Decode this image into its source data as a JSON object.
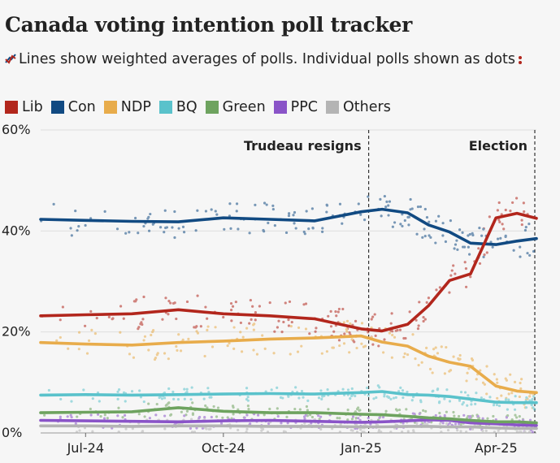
{
  "header": {
    "title": "Canada voting intention poll tracker",
    "subtitle_text": "Lines show weighted averages of polls. Individual polls shown as dots",
    "lines_icon": "lines-icon",
    "dots_icon": "dots-icon"
  },
  "chart_data": {
    "type": "line",
    "title": "Canada voting intention poll tracker",
    "xlabel": "",
    "ylabel": "",
    "ylim": [
      0,
      60
    ],
    "y_ticks": [
      "0%",
      "20%",
      "40%",
      "60%"
    ],
    "x_ticks": [
      "Jul-24",
      "Oct-24",
      "Jan-25",
      "Apr-25"
    ],
    "x_range": [
      "2024-06-01",
      "2025-04-28"
    ],
    "grid": true,
    "legend_position": "top-left",
    "annotations": [
      {
        "label": "Trudeau resigns",
        "date": "2025-01-06"
      },
      {
        "label": "Election",
        "date": "2025-04-28"
      }
    ],
    "x": [
      "2024-06-01",
      "2024-07-01",
      "2024-08-01",
      "2024-09-01",
      "2024-10-01",
      "2024-11-01",
      "2024-12-01",
      "2025-01-01",
      "2025-01-15",
      "2025-02-01",
      "2025-02-15",
      "2025-03-01",
      "2025-03-15",
      "2025-04-01",
      "2025-04-15",
      "2025-04-28"
    ],
    "series": [
      {
        "name": "Lib",
        "color": "#b2261c",
        "values": [
          23.2,
          23.4,
          23.6,
          24.4,
          23.6,
          23.2,
          22.6,
          20.6,
          20.2,
          21.5,
          25.2,
          30.2,
          31.5,
          42.6,
          43.5,
          42.5
        ]
      },
      {
        "name": "Con",
        "color": "#114a82",
        "values": [
          42.3,
          42.1,
          41.9,
          41.8,
          42.6,
          42.3,
          42.0,
          43.8,
          44.3,
          43.6,
          41.2,
          39.8,
          37.6,
          37.3,
          38.0,
          38.5
        ]
      },
      {
        "name": "NDP",
        "color": "#e8ac4b",
        "values": [
          17.9,
          17.6,
          17.4,
          17.9,
          18.2,
          18.6,
          18.8,
          19.2,
          18.0,
          17.2,
          15.2,
          14.0,
          13.2,
          9.3,
          8.3,
          8.0
        ]
      },
      {
        "name": "BQ",
        "color": "#5ac2cb",
        "values": [
          7.5,
          7.6,
          7.5,
          7.6,
          7.7,
          7.8,
          7.7,
          8.0,
          8.2,
          7.6,
          7.5,
          7.2,
          6.7,
          6.1,
          6.0,
          6.0
        ]
      },
      {
        "name": "Green",
        "color": "#6ea35f",
        "values": [
          4.0,
          4.1,
          4.2,
          5.0,
          4.3,
          4.0,
          4.0,
          3.7,
          3.6,
          3.3,
          3.0,
          2.8,
          2.5,
          2.2,
          2.2,
          2.0
        ]
      },
      {
        "name": "PPC",
        "color": "#8a54c8",
        "values": [
          2.5,
          2.4,
          2.3,
          2.2,
          2.4,
          2.5,
          2.3,
          2.1,
          2.2,
          2.4,
          2.6,
          2.5,
          2.0,
          1.8,
          1.6,
          1.5
        ]
      },
      {
        "name": "Others",
        "color": "#b4b4b4",
        "values": [
          1.4,
          1.4,
          1.3,
          1.4,
          1.4,
          1.3,
          1.3,
          1.2,
          1.2,
          1.3,
          1.3,
          1.2,
          1.2,
          1.0,
          0.9,
          0.9
        ]
      }
    ]
  }
}
